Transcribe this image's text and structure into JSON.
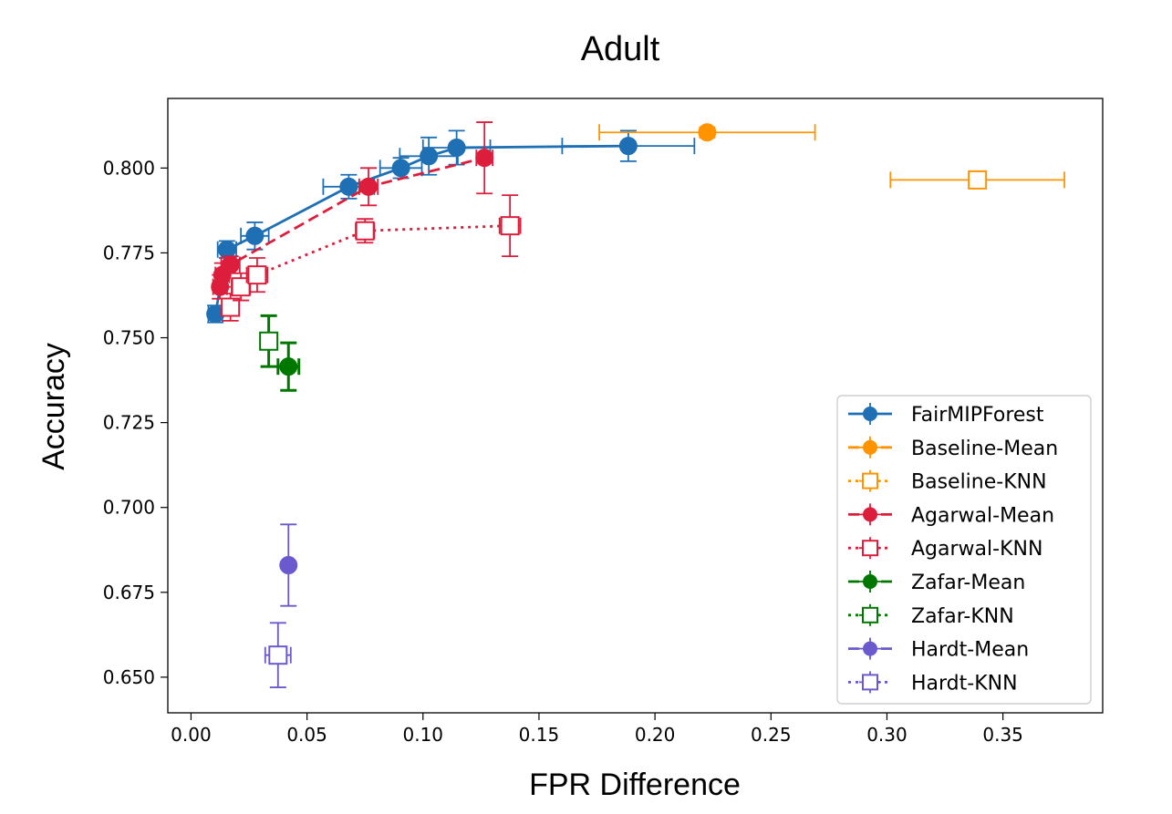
{
  "chart_data": {
    "type": "scatter",
    "title": "Adult",
    "xlabel": "FPR Difference",
    "ylabel": "Accuracy",
    "xlim": [
      -0.01,
      0.393
    ],
    "ylim": [
      0.6395,
      0.8205
    ],
    "xticks": [
      {
        "value": 0.0,
        "label": "0.00"
      },
      {
        "value": 0.05,
        "label": "0.05"
      },
      {
        "value": 0.1,
        "label": "0.10"
      },
      {
        "value": 0.15,
        "label": "0.15"
      },
      {
        "value": 0.2,
        "label": "0.20"
      },
      {
        "value": 0.25,
        "label": "0.25"
      },
      {
        "value": 0.3,
        "label": "0.30"
      },
      {
        "value": 0.35,
        "label": "0.35"
      }
    ],
    "yticks": [
      {
        "value": 0.65,
        "label": "0.650"
      },
      {
        "value": 0.675,
        "label": "0.675"
      },
      {
        "value": 0.7,
        "label": "0.700"
      },
      {
        "value": 0.725,
        "label": "0.725"
      },
      {
        "value": 0.75,
        "label": "0.750"
      },
      {
        "value": 0.775,
        "label": "0.775"
      },
      {
        "value": 0.8,
        "label": "0.800"
      }
    ],
    "grid": false,
    "legend_position": "bottom-right",
    "series": [
      {
        "name": "FairMIPForest",
        "color": "#1f6fb4",
        "marker": "circle",
        "line": "solid",
        "points": [
          {
            "x": 0.0105,
            "y": 0.757,
            "xerr": 0.003,
            "yerr": 0.0025
          },
          {
            "x": 0.0155,
            "y": 0.776,
            "xerr": 0.004,
            "yerr": 0.0025
          },
          {
            "x": 0.0275,
            "y": 0.78,
            "xerr": 0.006,
            "yerr": 0.004
          },
          {
            "x": 0.068,
            "y": 0.7945,
            "xerr": 0.011,
            "yerr": 0.0035
          },
          {
            "x": 0.0905,
            "y": 0.8,
            "xerr": 0.009,
            "yerr": 0.003
          },
          {
            "x": 0.1025,
            "y": 0.8035,
            "xerr": 0.0125,
            "yerr": 0.0055
          },
          {
            "x": 0.1145,
            "y": 0.806,
            "xerr": 0.0145,
            "yerr": 0.005
          },
          {
            "x": 0.1885,
            "y": 0.8065,
            "xerr": 0.0285,
            "yerr": 0.0045
          }
        ]
      },
      {
        "name": "Baseline-Mean",
        "color": "#ff9400",
        "marker": "circle",
        "line": "dashed",
        "points": [
          {
            "x": 0.2225,
            "y": 0.8105,
            "xerr": 0.0465,
            "yerr": 0.0015
          }
        ]
      },
      {
        "name": "Baseline-KNN",
        "color": "#ff9400",
        "marker": "square-open",
        "line": "dotted",
        "points": [
          {
            "x": 0.339,
            "y": 0.7965,
            "xerr": 0.0375,
            "yerr": 0.0015
          }
        ]
      },
      {
        "name": "Agarwal-Mean",
        "color": "#dc1e3c",
        "marker": "circle",
        "line": "dashed",
        "points": [
          {
            "x": 0.0125,
            "y": 0.765,
            "xerr": 0.003,
            "yerr": 0.0035
          },
          {
            "x": 0.0135,
            "y": 0.7685,
            "xerr": 0.003,
            "yerr": 0.0035
          },
          {
            "x": 0.017,
            "y": 0.7715,
            "xerr": 0.004,
            "yerr": 0.0025
          },
          {
            "x": 0.0765,
            "y": 0.7945,
            "xerr": 0.004,
            "yerr": 0.0055
          },
          {
            "x": 0.1265,
            "y": 0.803,
            "xerr": 0.0035,
            "yerr": 0.0105
          }
        ]
      },
      {
        "name": "Agarwal-KNN",
        "color": "#dc1e3c",
        "marker": "square-open",
        "line": "dotted",
        "points": [
          {
            "x": 0.017,
            "y": 0.759,
            "xerr": 0.003,
            "yerr": 0.004
          },
          {
            "x": 0.0215,
            "y": 0.765,
            "xerr": 0.004,
            "yerr": 0.004
          },
          {
            "x": 0.0285,
            "y": 0.7685,
            "xerr": 0.0045,
            "yerr": 0.005
          },
          {
            "x": 0.075,
            "y": 0.7815,
            "xerr": 0.004,
            "yerr": 0.0035
          },
          {
            "x": 0.1375,
            "y": 0.783,
            "xerr": 0.0045,
            "yerr": 0.009
          }
        ]
      },
      {
        "name": "Zafar-Mean",
        "color": "#007800",
        "marker": "circle",
        "line": "dashed",
        "points": [
          {
            "x": 0.042,
            "y": 0.7415,
            "xerr": 0.0045,
            "yerr": 0.007
          }
        ]
      },
      {
        "name": "Zafar-KNN",
        "color": "#007800",
        "marker": "square-open",
        "line": "dotted",
        "points": [
          {
            "x": 0.0335,
            "y": 0.749,
            "xerr": 0.003,
            "yerr": 0.0075
          }
        ]
      },
      {
        "name": "Hardt-Mean",
        "color": "#6a5acd",
        "marker": "circle",
        "line": "dashed",
        "points": [
          {
            "x": 0.042,
            "y": 0.683,
            "xerr": 0.0015,
            "yerr": 0.012
          }
        ]
      },
      {
        "name": "Hardt-KNN",
        "color": "#6a5acd",
        "marker": "square-open",
        "line": "dotted",
        "points": [
          {
            "x": 0.0375,
            "y": 0.6565,
            "xerr": 0.0055,
            "yerr": 0.0095
          }
        ]
      }
    ]
  }
}
